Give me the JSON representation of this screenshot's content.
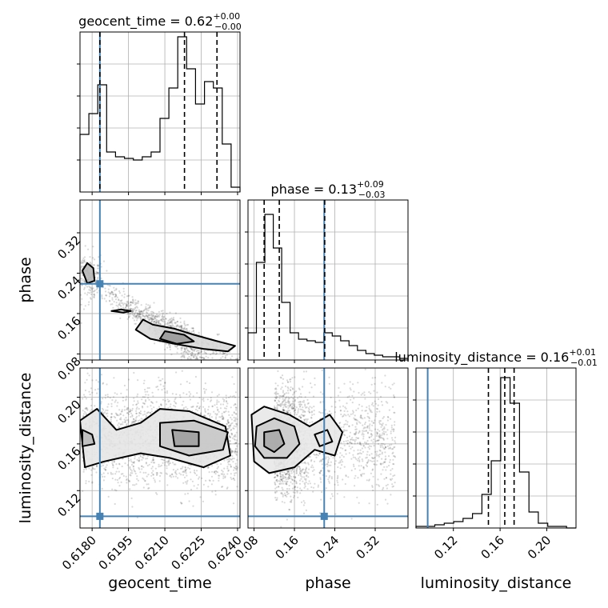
{
  "chart_data": {
    "type": "corner",
    "grid": true,
    "truth_color": "#4682b4",
    "parameters": [
      {
        "name": "geocent_time",
        "xlabel": "geocent_time",
        "range": [
          0.6175,
          0.6241
        ],
        "ticks": [
          "0.6180",
          "0.6195",
          "0.6210",
          "0.6225",
          "0.6240"
        ],
        "tick_values": [
          0.618,
          0.6195,
          0.621,
          0.6225,
          0.624
        ],
        "title": {
          "prefix": "geocent_time = 0.62",
          "plus": "+0.00",
          "minus": "−0.00"
        },
        "quantiles": [
          0.61832,
          0.62181,
          0.62315
        ],
        "truth": 0.61832,
        "hist": [
          0.36,
          0.49,
          0.67,
          0.25,
          0.22,
          0.21,
          0.2,
          0.22,
          0.25,
          0.46,
          0.65,
          0.97,
          0.77,
          0.55,
          0.69,
          0.65,
          0.3,
          0.03
        ]
      },
      {
        "name": "phase",
        "xlabel": "phase",
        "ylabel": "phase",
        "range": [
          0.068,
          0.385
        ],
        "ticks": [
          "0.08",
          "0.16",
          "0.24",
          "0.32"
        ],
        "tick_values": [
          0.08,
          0.16,
          0.24,
          0.32
        ],
        "title": {
          "prefix": "phase = 0.13",
          "plus": "+0.09",
          "minus": "−0.03"
        },
        "quantiles": [
          0.1,
          0.13,
          0.22
        ],
        "truth": 0.219,
        "hist": [
          0.17,
          0.61,
          0.91,
          0.7,
          0.36,
          0.17,
          0.13,
          0.12,
          0.11,
          0.17,
          0.15,
          0.12,
          0.09,
          0.06,
          0.04,
          0.03,
          0.02,
          0.02,
          0.01
        ]
      },
      {
        "name": "luminosity_distance",
        "xlabel": "luminosity_distance",
        "ylabel": "luminosity_distance",
        "range": [
          0.088,
          0.225
        ],
        "ticks": [
          "0.12",
          "0.16",
          "0.20"
        ],
        "tick_values": [
          0.12,
          0.16,
          0.2
        ],
        "title": {
          "prefix": "luminosity_distance = 0.16",
          "plus": "+0.01",
          "minus": "−0.01"
        },
        "quantiles": [
          0.15,
          0.164,
          0.172
        ],
        "truth": 0.098,
        "hist": [
          0.01,
          0.01,
          0.02,
          0.03,
          0.04,
          0.06,
          0.09,
          0.21,
          0.42,
          0.94,
          0.78,
          0.35,
          0.1,
          0.03,
          0.01,
          0.01,
          0.0
        ]
      }
    ]
  }
}
